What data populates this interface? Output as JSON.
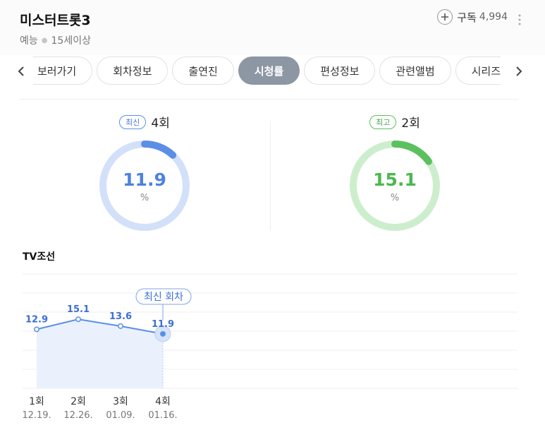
{
  "program": {
    "title": "미스터트롯3",
    "genre": "예능",
    "rating": "15세이상"
  },
  "subscribe": {
    "label": "구독",
    "count": "4,994"
  },
  "tabs": [
    {
      "label": "보러가기",
      "active": false
    },
    {
      "label": "회차정보",
      "active": false
    },
    {
      "label": "출연진",
      "active": false
    },
    {
      "label": "시청률",
      "active": true
    },
    {
      "label": "편성정보",
      "active": false
    },
    {
      "label": "관련앨범",
      "active": false
    },
    {
      "label": "시리즈",
      "active": false
    }
  ],
  "latest": {
    "badge": "최신",
    "round": "4회",
    "value": "11.9",
    "unit": "%",
    "fraction": 0.119,
    "color": "#5b8ee6",
    "track": "#d3e0fa"
  },
  "best": {
    "badge": "최고",
    "round": "2회",
    "value": "15.1",
    "unit": "%",
    "fraction": 0.151,
    "color": "#5cc05e",
    "track": "#cdeecd"
  },
  "chart_data": {
    "type": "line",
    "network": "TV조선",
    "annotation": "최신 회차",
    "categories": [
      "1회",
      "2회",
      "3회",
      "4회"
    ],
    "dates": [
      "12.19.",
      "12.26.",
      "01.09.",
      "01.16."
    ],
    "values": [
      12.9,
      15.1,
      13.6,
      11.9
    ],
    "value_labels": [
      "12.9",
      "15.1",
      "13.6",
      "11.9"
    ],
    "ylim": [
      0,
      25
    ],
    "grid": true,
    "color": "#5b8ee6"
  }
}
